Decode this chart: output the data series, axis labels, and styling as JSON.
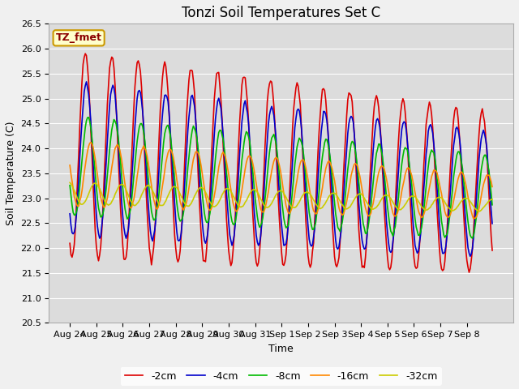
{
  "title": "Tonzi Soil Temperatures Set C",
  "xlabel": "Time",
  "ylabel": "Soil Temperature (C)",
  "annotation": "TZ_fmet",
  "ylim": [
    20.5,
    26.5
  ],
  "date_labels": [
    "Aug 24",
    "Aug 25",
    "Aug 26",
    "Aug 27",
    "Aug 28",
    "Aug 29",
    "Aug 30",
    "Aug 31",
    "Sep 1",
    "Sep 2",
    "Sep 3",
    "Sep 4",
    "Sep 5",
    "Sep 6",
    "Sep 7",
    "Sep 8"
  ],
  "legend_labels": [
    "-2cm",
    "-4cm",
    "-8cm",
    "-16cm",
    "-32cm"
  ],
  "line_colors": [
    "#dd0000",
    "#0000cc",
    "#00bb00",
    "#ff8800",
    "#cccc00"
  ],
  "line_widths": [
    1.2,
    1.2,
    1.2,
    1.2,
    1.2
  ],
  "plot_bg_color": "#dcdcdc",
  "fig_bg_color": "#f0f0f0",
  "legend_bg_color": "#ffffff",
  "grid_color": "#ffffff",
  "title_fontsize": 12,
  "axis_fontsize": 9,
  "tick_fontsize": 8,
  "figsize": [
    6.4,
    4.8
  ],
  "dpi": 100
}
